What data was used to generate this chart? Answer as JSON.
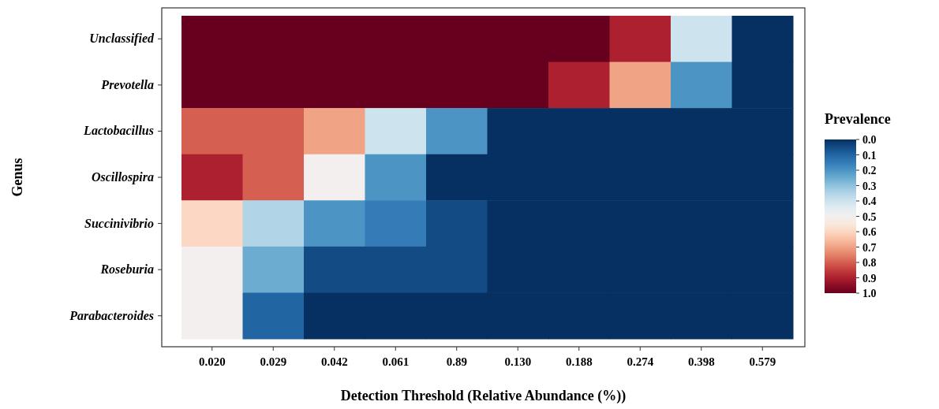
{
  "chart_data": {
    "type": "heatmap",
    "xlabel": "Detection Threshold (Relative Abundance (%))",
    "ylabel": "Genus",
    "legend_title": "Prevalence",
    "categories": [
      "0.020",
      "0.029",
      "0.042",
      "0.061",
      "0.89",
      "0.130",
      "0.188",
      "0.274",
      "0.398",
      "0.579"
    ],
    "y_categories": [
      "Unclassified",
      "Prevotella",
      "Lactobacillus",
      "Oscillospira",
      "Succinivibrio",
      "Roseburia",
      "Parabacteroides"
    ],
    "cells": [
      [
        1,
        1,
        1,
        1,
        1,
        1,
        1,
        0.9,
        0.4,
        0
      ],
      [
        1,
        1,
        1,
        1,
        1,
        1,
        0.9,
        0.7,
        0.2,
        0
      ],
      [
        0.8,
        0.8,
        0.7,
        0.4,
        0.2,
        0,
        0,
        0,
        0,
        0
      ],
      [
        0.9,
        0.8,
        0.5,
        0.2,
        0,
        0,
        0,
        0,
        0,
        0
      ],
      [
        0.6,
        0.35,
        0.2,
        0.15,
        0.05,
        0,
        0,
        0,
        0,
        0
      ],
      [
        0.5,
        0.25,
        0.05,
        0.05,
        0.05,
        0,
        0,
        0,
        0,
        0
      ],
      [
        0.5,
        0.1,
        0,
        0,
        0,
        0,
        0,
        0,
        0,
        0
      ]
    ],
    "clim": [
      0,
      1
    ],
    "cticks": [
      {
        "value": 0,
        "label": "0.0"
      },
      {
        "value": 0.1,
        "label": "0.1"
      },
      {
        "value": 0.2,
        "label": "0.2"
      },
      {
        "value": 0.3,
        "label": "0.3"
      },
      {
        "value": 0.4,
        "label": "0.4"
      },
      {
        "value": 0.5,
        "label": "0.5"
      },
      {
        "value": 0.6,
        "label": "0.6"
      },
      {
        "value": 0.7,
        "label": "0.7"
      },
      {
        "value": 0.8,
        "label": "0.8"
      },
      {
        "value": 0.9,
        "label": "0.9"
      },
      {
        "value": 1,
        "label": "1.0"
      }
    ]
  }
}
